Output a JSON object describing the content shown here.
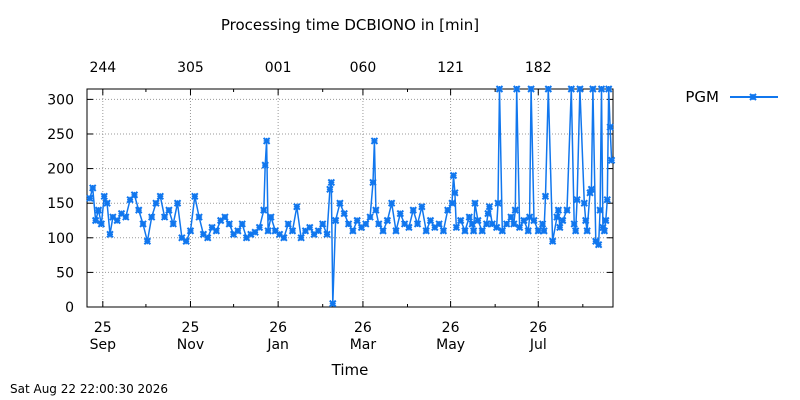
{
  "chart_data": {
    "type": "line",
    "title": "Processing time DCBIONO in [min]",
    "xlabel": "Time",
    "ylabel": "",
    "ylim": [
      0,
      315
    ],
    "yticks": [
      0,
      50,
      100,
      150,
      200,
      250,
      300
    ],
    "xlim": [
      "2025-08-21",
      "2026-08-22"
    ],
    "bottom_ticks": [
      {
        "date": "2025-09-01",
        "day": "25",
        "month": "Sep"
      },
      {
        "date": "2025-11-01",
        "day": "25",
        "month": "Nov"
      },
      {
        "date": "2026-01-01",
        "day": "26",
        "month": "Jan"
      },
      {
        "date": "2026-03-01",
        "day": "26",
        "month": "Mar"
      },
      {
        "date": "2026-05-01",
        "day": "26",
        "month": "May"
      },
      {
        "date": "2026-07-01",
        "day": "26",
        "month": "Jul"
      }
    ],
    "minor_ticks": [
      "2025-10-01",
      "2025-12-01",
      "2026-02-01",
      "2026-04-01",
      "2026-06-01",
      "2026-08-01"
    ],
    "top_ticks": [
      {
        "date": "2025-09-01",
        "label": "244"
      },
      {
        "date": "2025-11-01",
        "label": "305"
      },
      {
        "date": "2026-01-01",
        "label": "001"
      },
      {
        "date": "2026-03-01",
        "label": "060"
      },
      {
        "date": "2026-05-01",
        "label": "121"
      },
      {
        "date": "2026-07-01",
        "label": "182"
      }
    ],
    "grid": true,
    "legend": "top-right",
    "color": "#1177ee",
    "series": [
      {
        "name": "PGM",
        "x": [
          "2025-08-23",
          "2025-08-25",
          "2025-08-27",
          "2025-08-29",
          "2025-08-31",
          "2025-09-02",
          "2025-09-04",
          "2025-09-06",
          "2025-09-08",
          "2025-09-11",
          "2025-09-14",
          "2025-09-17",
          "2025-09-20",
          "2025-09-23",
          "2025-09-26",
          "2025-09-29",
          "2025-10-02",
          "2025-10-05",
          "2025-10-08",
          "2025-10-11",
          "2025-10-14",
          "2025-10-17",
          "2025-10-20",
          "2025-10-23",
          "2025-10-26",
          "2025-10-29",
          "2025-11-01",
          "2025-11-04",
          "2025-11-07",
          "2025-11-10",
          "2025-11-13",
          "2025-11-16",
          "2025-11-19",
          "2025-11-22",
          "2025-11-25",
          "2025-11-28",
          "2025-12-01",
          "2025-12-04",
          "2025-12-07",
          "2025-12-10",
          "2025-12-13",
          "2025-12-16",
          "2025-12-19",
          "2025-12-22",
          "2025-12-23",
          "2025-12-24",
          "2025-12-25",
          "2025-12-27",
          "2025-12-30",
          "2026-01-02",
          "2026-01-05",
          "2026-01-08",
          "2026-01-11",
          "2026-01-14",
          "2026-01-17",
          "2026-01-20",
          "2026-01-23",
          "2026-01-26",
          "2026-01-29",
          "2026-02-01",
          "2026-02-04",
          "2026-02-06",
          "2026-02-07",
          "2026-02-08",
          "2026-02-10",
          "2026-02-13",
          "2026-02-16",
          "2026-02-19",
          "2026-02-22",
          "2026-02-25",
          "2026-02-28",
          "2026-03-03",
          "2026-03-06",
          "2026-03-08",
          "2026-03-09",
          "2026-03-10",
          "2026-03-12",
          "2026-03-15",
          "2026-03-18",
          "2026-03-21",
          "2026-03-24",
          "2026-03-27",
          "2026-03-30",
          "2026-04-02",
          "2026-04-05",
          "2026-04-08",
          "2026-04-11",
          "2026-04-14",
          "2026-04-17",
          "2026-04-20",
          "2026-04-23",
          "2026-04-26",
          "2026-04-29",
          "2026-05-02",
          "2026-05-03",
          "2026-05-04",
          "2026-05-05",
          "2026-05-08",
          "2026-05-11",
          "2026-05-14",
          "2026-05-16",
          "2026-05-17",
          "2026-05-18",
          "2026-05-20",
          "2026-05-23",
          "2026-05-26",
          "2026-05-27",
          "2026-05-28",
          "2026-05-30",
          "2026-06-02",
          "2026-06-03",
          "2026-06-04",
          "2026-06-06",
          "2026-06-09",
          "2026-06-12",
          "2026-06-14",
          "2026-06-15",
          "2026-06-16",
          "2026-06-18",
          "2026-06-21",
          "2026-06-24",
          "2026-06-25",
          "2026-06-26",
          "2026-06-28",
          "2026-07-01",
          "2026-07-04",
          "2026-07-05",
          "2026-07-06",
          "2026-07-08",
          "2026-07-11",
          "2026-07-14",
          "2026-07-15",
          "2026-07-16",
          "2026-07-18",
          "2026-07-21",
          "2026-07-24",
          "2026-07-26",
          "2026-07-27",
          "2026-07-28",
          "2026-07-30",
          "2026-08-02",
          "2026-08-03",
          "2026-08-04",
          "2026-08-06",
          "2026-08-07",
          "2026-08-08",
          "2026-08-10",
          "2026-08-12",
          "2026-08-13",
          "2026-08-14",
          "2026-08-15",
          "2026-08-16",
          "2026-08-17",
          "2026-08-18",
          "2026-08-19",
          "2026-08-20",
          "2026-08-21"
        ],
        "y": [
          157,
          172,
          125,
          140,
          120,
          160,
          150,
          105,
          130,
          125,
          135,
          130,
          155,
          162,
          140,
          120,
          95,
          130,
          150,
          160,
          130,
          140,
          120,
          150,
          100,
          95,
          110,
          160,
          130,
          105,
          100,
          115,
          110,
          125,
          130,
          120,
          105,
          110,
          120,
          100,
          105,
          108,
          115,
          140,
          205,
          240,
          110,
          130,
          110,
          105,
          100,
          120,
          110,
          145,
          100,
          110,
          115,
          105,
          110,
          120,
          105,
          170,
          180,
          5,
          125,
          150,
          135,
          120,
          110,
          125,
          115,
          120,
          130,
          180,
          240,
          140,
          120,
          110,
          125,
          150,
          110,
          135,
          120,
          115,
          140,
          120,
          145,
          110,
          125,
          115,
          120,
          110,
          140,
          150,
          190,
          165,
          115,
          125,
          110,
          130,
          120,
          110,
          150,
          125,
          110,
          120,
          135,
          145,
          120,
          115,
          150,
          315,
          110,
          120,
          130,
          120,
          140,
          315,
          115,
          125,
          110,
          130,
          315,
          125,
          110,
          120,
          110,
          160,
          315,
          95,
          130,
          140,
          115,
          125,
          140,
          315,
          120,
          110,
          155,
          315,
          150,
          125,
          110,
          165,
          170,
          315,
          95,
          90,
          140,
          315,
          115,
          110,
          125,
          155,
          315,
          260,
          212
        ]
      }
    ]
  },
  "footer": {
    "timestamp": "Sat Aug 22 22:00:30 2026"
  }
}
